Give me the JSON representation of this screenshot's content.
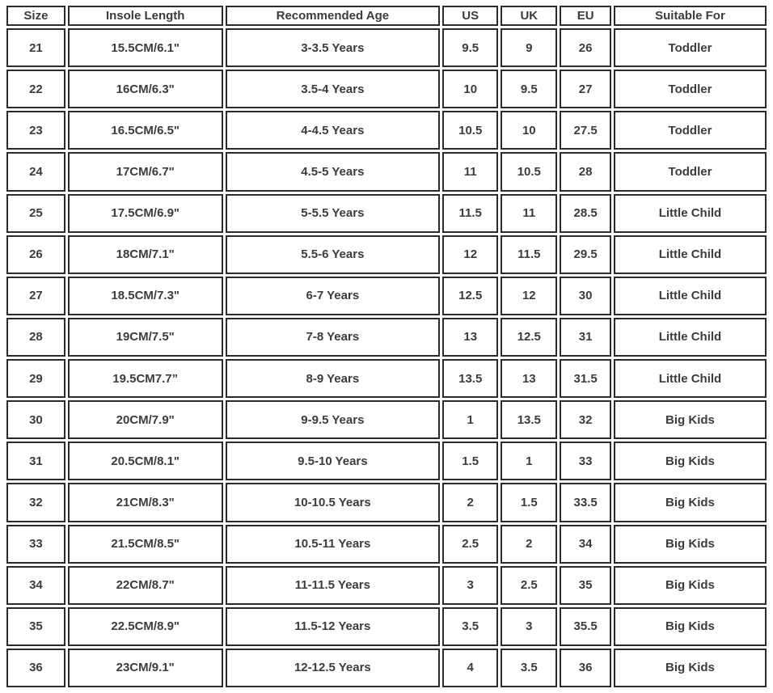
{
  "colors": {
    "background": "#ffffff",
    "border": "#2b2b2b",
    "text": "#3c3c3c"
  },
  "chart_data": {
    "type": "table",
    "columns": [
      "Size",
      "Insole Length",
      "Recommended Age",
      "US",
      "UK",
      "EU",
      "Suitable For"
    ],
    "rows": [
      [
        "21",
        "15.5CM/6.1\"",
        "3-3.5 Years",
        "9.5",
        "9",
        "26",
        "Toddler"
      ],
      [
        "22",
        "16CM/6.3\"",
        "3.5-4 Years",
        "10",
        "9.5",
        "27",
        "Toddler"
      ],
      [
        "23",
        "16.5CM/6.5\"",
        "4-4.5 Years",
        "10.5",
        "10",
        "27.5",
        "Toddler"
      ],
      [
        "24",
        "17CM/6.7\"",
        "4.5-5 Years",
        "11",
        "10.5",
        "28",
        "Toddler"
      ],
      [
        "25",
        "17.5CM/6.9\"",
        "5-5.5 Years",
        "11.5",
        "11",
        "28.5",
        "Little Child"
      ],
      [
        "26",
        "18CM/7.1\"",
        "5.5-6 Years",
        "12",
        "11.5",
        "29.5",
        "Little Child"
      ],
      [
        "27",
        "18.5CM/7.3\"",
        "6-7 Years",
        "12.5",
        "12",
        "30",
        "Little Child"
      ],
      [
        "28",
        "19CM/7.5\"",
        "7-8 Years",
        "13",
        "12.5",
        "31",
        "Little Child"
      ],
      [
        "29",
        "19.5CM7.7”",
        "8-9 Years",
        "13.5",
        "13",
        "31.5",
        "Little Child"
      ],
      [
        "30",
        "20CM/7.9\"",
        "9-9.5 Years",
        "1",
        "13.5",
        "32",
        "Big Kids"
      ],
      [
        "31",
        "20.5CM/8.1\"",
        "9.5-10 Years",
        "1.5",
        "1",
        "33",
        "Big Kids"
      ],
      [
        "32",
        "21CM/8.3\"",
        "10-10.5 Years",
        "2",
        "1.5",
        "33.5",
        "Big Kids"
      ],
      [
        "33",
        "21.5CM/8.5\"",
        "10.5-11 Years",
        "2.5",
        "2",
        "34",
        "Big Kids"
      ],
      [
        "34",
        "22CM/8.7\"",
        "11-11.5 Years",
        "3",
        "2.5",
        "35",
        "Big Kids"
      ],
      [
        "35",
        "22.5CM/8.9\"",
        "11.5-12 Years",
        "3.5",
        "3",
        "35.5",
        "Big Kids"
      ],
      [
        "36",
        "23CM/9.1\"",
        "12-12.5 Years",
        "4",
        "3.5",
        "36",
        "Big Kids"
      ]
    ]
  }
}
